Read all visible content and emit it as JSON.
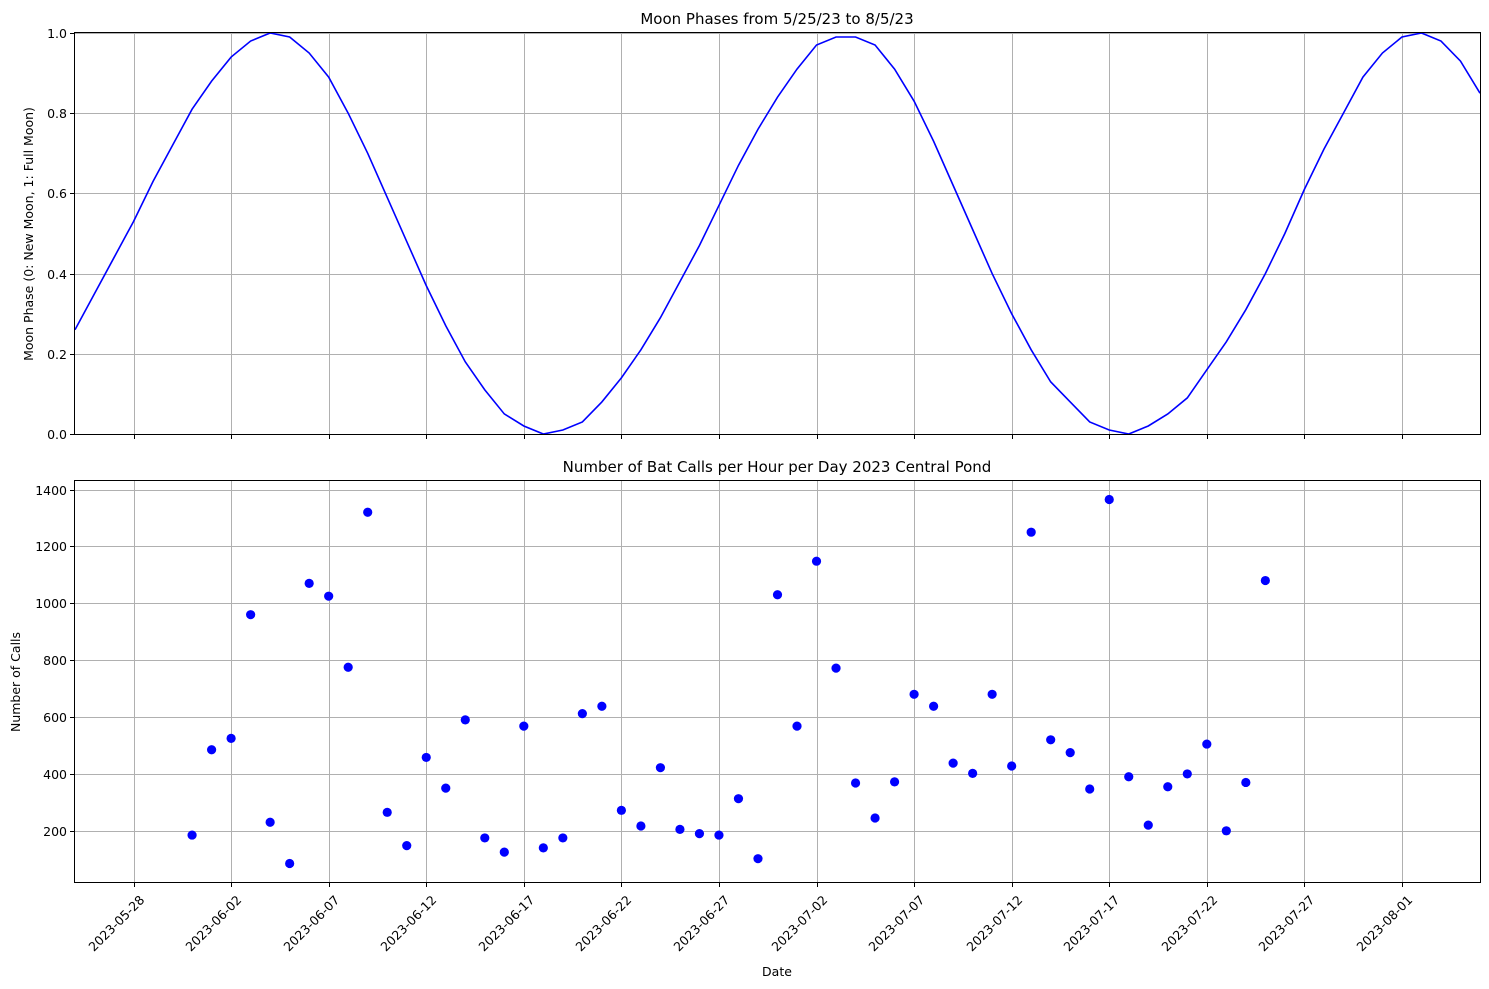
{
  "chart_data": [
    {
      "type": "line",
      "title": "Moon Phases from 5/25/23 to 8/5/23",
      "xlabel": "",
      "ylabel": "Moon Phase (0: New Moon, 1: Full Moon)",
      "xlim": [
        "2023-05-25",
        "2023-08-05"
      ],
      "ylim": [
        0,
        1
      ],
      "yticks": [
        0.0,
        0.2,
        0.4,
        0.6,
        0.8,
        1.0
      ],
      "ytick_labels": [
        "0.0",
        "0.2",
        "0.4",
        "0.6",
        "0.8",
        "1.0"
      ],
      "grid": true,
      "color": "#0000ff",
      "series": [
        {
          "x": [
            "2023-05-25",
            "2023-05-26",
            "2023-05-27",
            "2023-05-28",
            "2023-05-29",
            "2023-05-30",
            "2023-05-31",
            "2023-06-01",
            "2023-06-02",
            "2023-06-03",
            "2023-06-04",
            "2023-06-05",
            "2023-06-06",
            "2023-06-07",
            "2023-06-08",
            "2023-06-09",
            "2023-06-10",
            "2023-06-11",
            "2023-06-12",
            "2023-06-13",
            "2023-06-14",
            "2023-06-15",
            "2023-06-16",
            "2023-06-17",
            "2023-06-18",
            "2023-06-19",
            "2023-06-20",
            "2023-06-21",
            "2023-06-22",
            "2023-06-23",
            "2023-06-24",
            "2023-06-25",
            "2023-06-26",
            "2023-06-27",
            "2023-06-28",
            "2023-06-29",
            "2023-06-30",
            "2023-07-01",
            "2023-07-02",
            "2023-07-03",
            "2023-07-04",
            "2023-07-05",
            "2023-07-06",
            "2023-07-07",
            "2023-07-08",
            "2023-07-09",
            "2023-07-10",
            "2023-07-11",
            "2023-07-12",
            "2023-07-13",
            "2023-07-14",
            "2023-07-15",
            "2023-07-16",
            "2023-07-17",
            "2023-07-18",
            "2023-07-19",
            "2023-07-20",
            "2023-07-21",
            "2023-07-22",
            "2023-07-23",
            "2023-07-24",
            "2023-07-25",
            "2023-07-26",
            "2023-07-27",
            "2023-07-28",
            "2023-07-29",
            "2023-07-30",
            "2023-07-31",
            "2023-08-01",
            "2023-08-02",
            "2023-08-03",
            "2023-08-04",
            "2023-08-05"
          ],
          "y": [
            0.26,
            0.35,
            0.44,
            0.53,
            0.63,
            0.72,
            0.81,
            0.88,
            0.94,
            0.98,
            1.0,
            0.99,
            0.95,
            0.89,
            0.8,
            0.7,
            0.59,
            0.48,
            0.37,
            0.27,
            0.18,
            0.11,
            0.05,
            0.02,
            0.0,
            0.01,
            0.03,
            0.08,
            0.14,
            0.21,
            0.29,
            0.38,
            0.47,
            0.57,
            0.67,
            0.76,
            0.84,
            0.91,
            0.97,
            0.99,
            0.99,
            0.97,
            0.91,
            0.83,
            0.73,
            0.62,
            0.51,
            0.4,
            0.3,
            0.21,
            0.13,
            0.08,
            0.03,
            0.01,
            0.0,
            0.02,
            0.05,
            0.09,
            0.16,
            0.23,
            0.31,
            0.4,
            0.5,
            0.61,
            0.71,
            0.8,
            0.89,
            0.95,
            0.99,
            1.0,
            0.98,
            0.93,
            0.85
          ]
        }
      ]
    },
    {
      "type": "scatter",
      "title": "Number of Bat Calls per Hour per Day 2023 Central Pond",
      "xlabel": "Date",
      "ylabel": "Number of Calls",
      "xlim": [
        "2023-05-25",
        "2023-08-05"
      ],
      "ylim": [
        20,
        1430
      ],
      "yticks": [
        200,
        400,
        600,
        800,
        1000,
        1200,
        1400
      ],
      "ytick_labels": [
        "200",
        "400",
        "600",
        "800",
        "1000",
        "1200",
        "1400"
      ],
      "grid": true,
      "color": "#0000ff",
      "series": [
        {
          "x": [
            "2023-05-31",
            "2023-06-01",
            "2023-06-02",
            "2023-06-03",
            "2023-06-04",
            "2023-06-05",
            "2023-06-06",
            "2023-06-07",
            "2023-06-08",
            "2023-06-09",
            "2023-06-10",
            "2023-06-11",
            "2023-06-12",
            "2023-06-13",
            "2023-06-14",
            "2023-06-15",
            "2023-06-16",
            "2023-06-17",
            "2023-06-18",
            "2023-06-19",
            "2023-06-20",
            "2023-06-21",
            "2023-06-22",
            "2023-06-23",
            "2023-06-24",
            "2023-06-25",
            "2023-06-26",
            "2023-06-27",
            "2023-06-28",
            "2023-06-29",
            "2023-06-30",
            "2023-07-01",
            "2023-07-02",
            "2023-07-03",
            "2023-07-04",
            "2023-07-05",
            "2023-07-06",
            "2023-07-07",
            "2023-07-08",
            "2023-07-09",
            "2023-07-10",
            "2023-07-11",
            "2023-07-12",
            "2023-07-13",
            "2023-07-14",
            "2023-07-15",
            "2023-07-16",
            "2023-07-17",
            "2023-07-18",
            "2023-07-19",
            "2023-07-20",
            "2023-07-21",
            "2023-07-22",
            "2023-07-23",
            "2023-07-24",
            "2023-07-25"
          ],
          "y": [
            185,
            485,
            525,
            960,
            230,
            85,
            1070,
            1025,
            775,
            1320,
            265,
            148,
            458,
            350,
            590,
            175,
            125,
            568,
            140,
            175,
            612,
            638,
            272,
            217,
            422,
            205,
            190,
            185,
            313,
            102,
            1030,
            568,
            1148,
            772,
            368,
            245,
            372,
            680,
            638,
            438,
            402,
            680,
            428,
            1250,
            520,
            475,
            347,
            1365,
            390,
            220,
            355,
            400,
            505,
            200,
            370,
            1080
          ]
        }
      ]
    }
  ],
  "x_axis": {
    "ticks": [
      "2023-05-28",
      "2023-06-02",
      "2023-06-07",
      "2023-06-12",
      "2023-06-17",
      "2023-06-22",
      "2023-06-27",
      "2023-07-02",
      "2023-07-07",
      "2023-07-12",
      "2023-07-17",
      "2023-07-22",
      "2023-07-27",
      "2023-08-01"
    ],
    "tick_labels": [
      "2023-05-28",
      "2023-06-02",
      "2023-06-07",
      "2023-06-12",
      "2023-06-17",
      "2023-06-22",
      "2023-06-27",
      "2023-07-02",
      "2023-07-07",
      "2023-07-12",
      "2023-07-17",
      "2023-07-22",
      "2023-07-27",
      "2023-08-01"
    ]
  }
}
